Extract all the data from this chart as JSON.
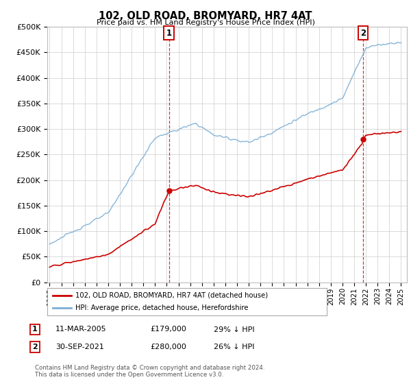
{
  "title": "102, OLD ROAD, BROMYARD, HR7 4AT",
  "subtitle": "Price paid vs. HM Land Registry's House Price Index (HPI)",
  "ylim": [
    0,
    500000
  ],
  "yticks": [
    0,
    50000,
    100000,
    150000,
    200000,
    250000,
    300000,
    350000,
    400000,
    450000,
    500000
  ],
  "ytick_labels": [
    "£0",
    "£50K",
    "£100K",
    "£150K",
    "£200K",
    "£250K",
    "£300K",
    "£350K",
    "£400K",
    "£450K",
    "£500K"
  ],
  "sale1_date_num": 2005.19,
  "sale1_price": 179000,
  "sale1_label": "1",
  "sale2_date_num": 2021.75,
  "sale2_price": 280000,
  "sale2_label": "2",
  "hpi_color": "#7aaed6",
  "price_color": "#cc0000",
  "background_color": "#ffffff",
  "grid_color": "#cccccc",
  "legend1_text": "102, OLD ROAD, BROMYARD, HR7 4AT (detached house)",
  "legend2_text": "HPI: Average price, detached house, Herefordshire",
  "table_row1": [
    "1",
    "11-MAR-2005",
    "£179,000",
    "29% ↓ HPI"
  ],
  "table_row2": [
    "2",
    "30-SEP-2021",
    "£280,000",
    "26% ↓ HPI"
  ],
  "footnote": "Contains HM Land Registry data © Crown copyright and database right 2024.\nThis data is licensed under the Open Government Licence v3.0."
}
